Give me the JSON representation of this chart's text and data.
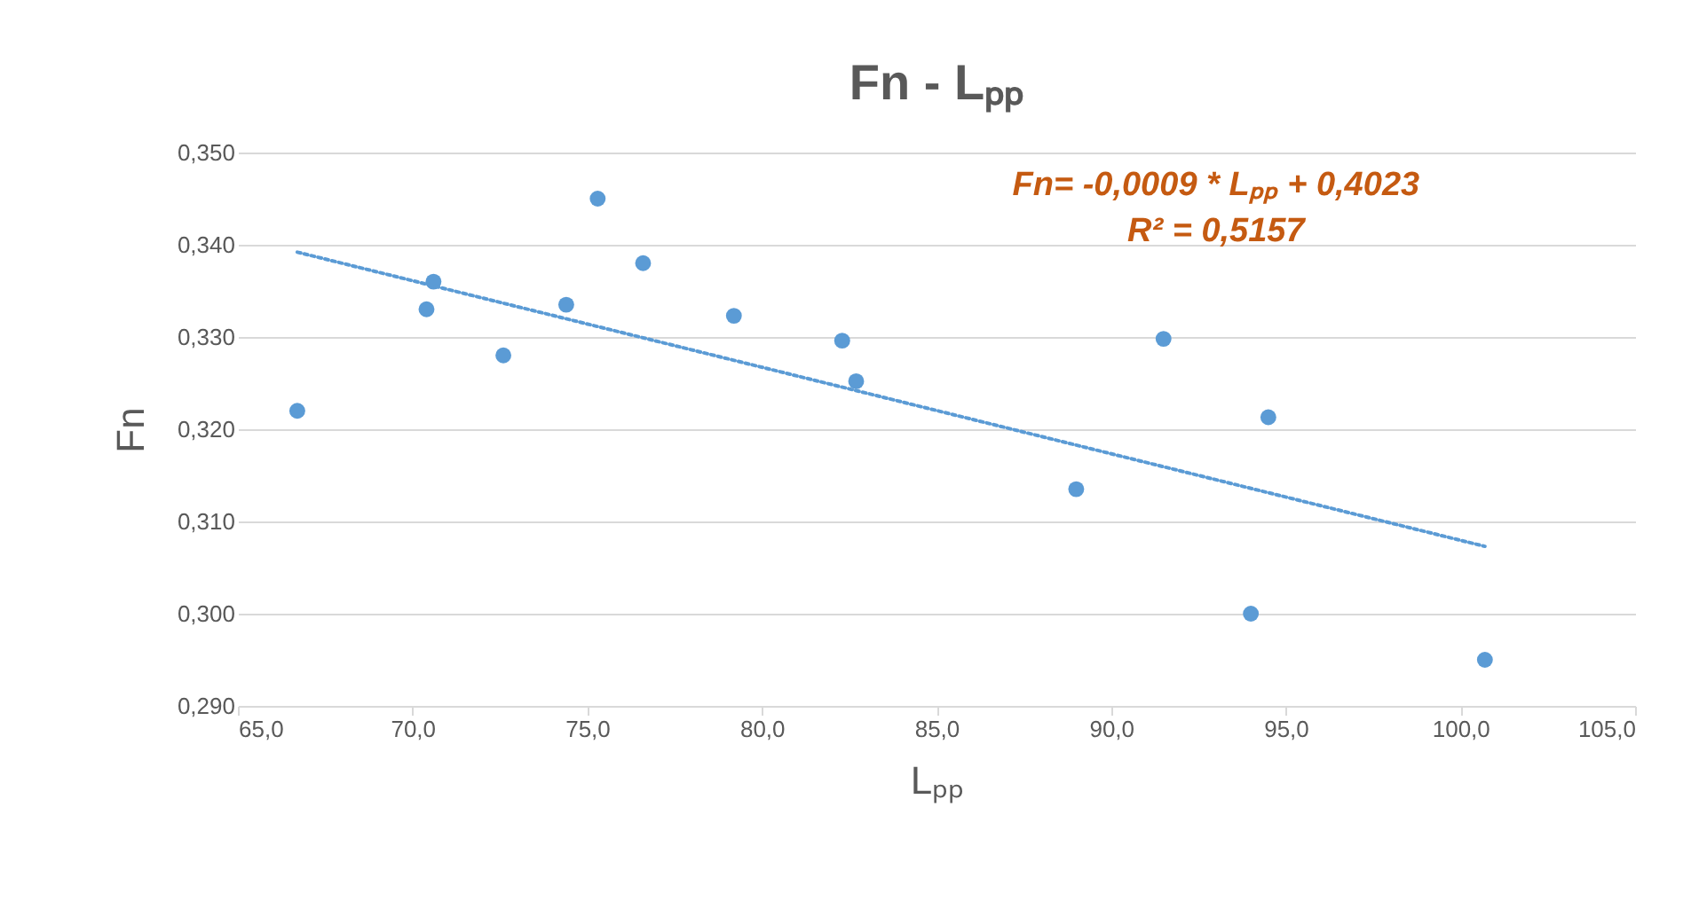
{
  "chart_data": {
    "type": "scatter",
    "title": "Fn - Lₚₚ",
    "xlabel": "Lₚₚ",
    "ylabel": "Fn",
    "annotations": [
      "Fn= -0,0009 * Lₚₚ + 0,4023",
      "R² = 0,5157"
    ],
    "series": [
      {
        "type": "scatter",
        "color": "#5b9bd5",
        "x": [
          66.7,
          70.4,
          70.6,
          72.6,
          74.4,
          75.3,
          76.6,
          79.2,
          82.3,
          82.7,
          89.0,
          91.5,
          94.0,
          94.5,
          100.7
        ],
        "values": [
          0.322,
          0.333,
          0.336,
          0.328,
          0.3335,
          0.345,
          0.338,
          0.3323,
          0.3296,
          0.3252,
          0.3135,
          0.3298,
          0.3,
          0.3213,
          0.295
        ],
        "marker": "circle"
      },
      {
        "type": "line",
        "color": "#5b9bd5",
        "x": [
          66.7,
          100.7
        ],
        "values": [
          0.3392,
          0.3073
        ],
        "line_style": "dotted"
      }
    ],
    "xlim": [
      65,
      105
    ],
    "xticks": [
      {
        "value": 65,
        "label": "65,0"
      },
      {
        "value": 70,
        "label": "70,0"
      },
      {
        "value": 75,
        "label": "75,0"
      },
      {
        "value": 80,
        "label": "80,0"
      },
      {
        "value": 85,
        "label": "85,0"
      },
      {
        "value": 90,
        "label": "90,0"
      },
      {
        "value": 95,
        "label": "95,0"
      },
      {
        "value": 100,
        "label": "100,0"
      },
      {
        "value": 105,
        "label": "105,0"
      }
    ],
    "ylim": [
      0.29,
      0.35
    ],
    "yticks": [
      {
        "value": 0.29,
        "label": "0,290"
      },
      {
        "value": 0.3,
        "label": "0,300"
      },
      {
        "value": 0.31,
        "label": "0,310"
      },
      {
        "value": 0.32,
        "label": "0,320"
      },
      {
        "value": 0.33,
        "label": "0,330"
      },
      {
        "value": 0.34,
        "label": "0,340"
      },
      {
        "value": 0.35,
        "label": "0,350"
      }
    ],
    "grid": "y",
    "legend": false
  }
}
